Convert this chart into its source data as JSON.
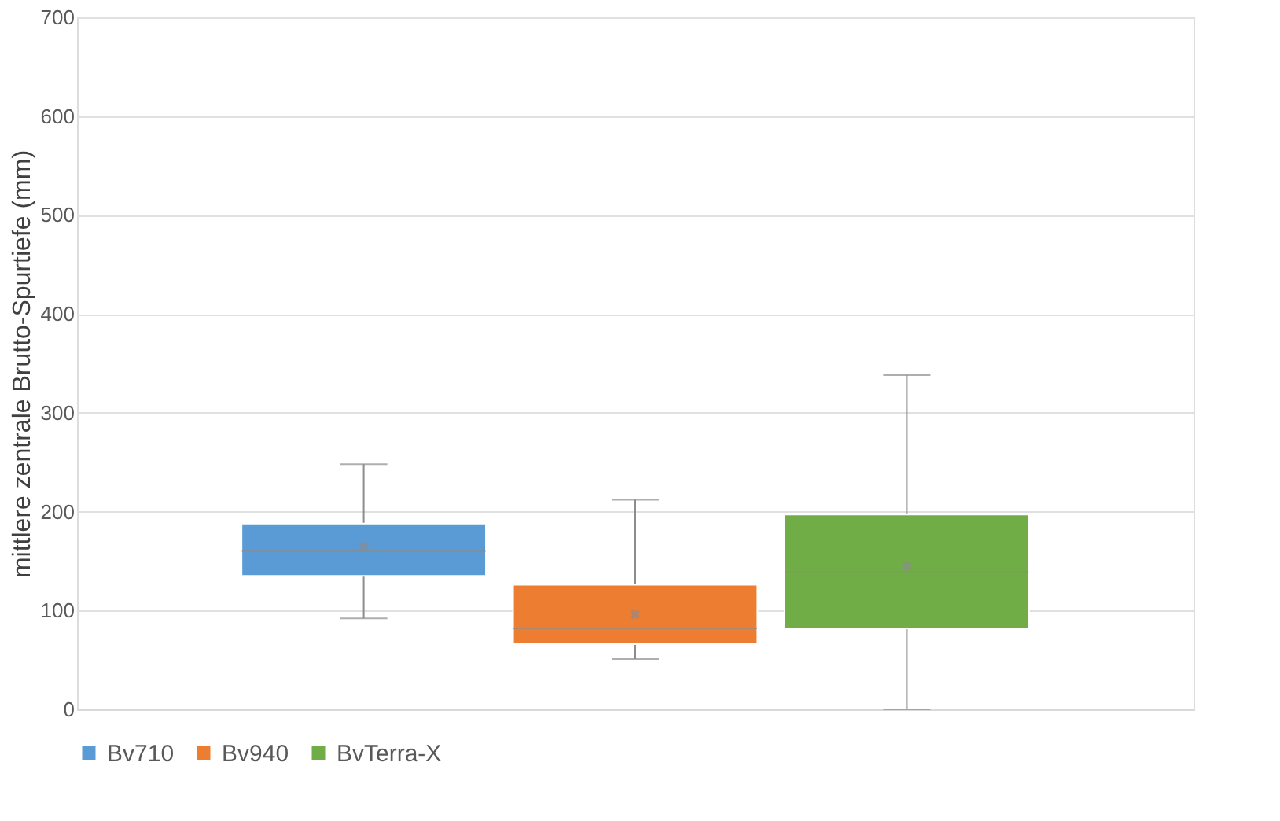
{
  "chart_data": {
    "type": "box",
    "categories": [
      null
    ],
    "ylabel": "mittlere zentrale Brutto-Spurtiefe (mm)",
    "ylim": [
      0,
      700
    ],
    "yticks": [
      0,
      100,
      200,
      300,
      400,
      500,
      600,
      700
    ],
    "grid": "y",
    "legend": "bottom",
    "series": [
      {
        "name": "Bv710",
        "color": "#5b9bd5",
        "boxes": [
          {
            "low": 92,
            "q1": 135,
            "median": 160,
            "q3": 188,
            "high": 248,
            "mean": 165
          }
        ]
      },
      {
        "name": "Bv940",
        "color": "#ed7d31",
        "boxes": [
          {
            "low": 51,
            "q1": 66,
            "median": 82,
            "q3": 126,
            "high": 212,
            "mean": 96
          }
        ]
      },
      {
        "name": "BvTerra-X",
        "color": "#70ad47",
        "boxes": [
          {
            "low": 0,
            "q1": 82,
            "median": 139,
            "q3": 197,
            "high": 338,
            "mean": 145
          }
        ]
      }
    ]
  }
}
